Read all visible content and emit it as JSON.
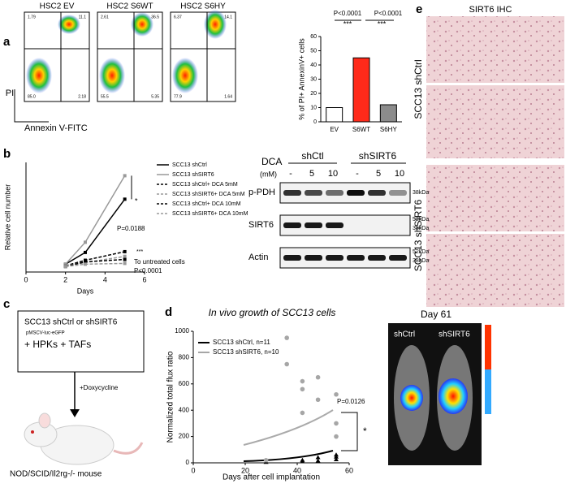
{
  "figure": {
    "panel_labels": [
      "a",
      "b",
      "c",
      "d",
      "e"
    ],
    "flow": {
      "y_label": "PI",
      "x_label": "Annexin V-FITC",
      "plots": [
        {
          "title": "HSC2 EV",
          "quadrants": [
            "1.79",
            "11.1",
            "85.0",
            "2.18"
          ]
        },
        {
          "title": "HSC2 S6WT",
          "quadrants": [
            "2.61",
            "36.5",
            "55.5",
            "5.35"
          ]
        },
        {
          "title": "HSC2 S6HY",
          "quadrants": [
            "6.37",
            "14.1",
            "77.9",
            "1.64"
          ]
        }
      ]
    },
    "western": {
      "treatment": "DCA",
      "unit": "(mM)",
      "groups": [
        "shCtl",
        "shSIRT6"
      ],
      "lanes": [
        "-",
        "5",
        "10",
        "-",
        "5",
        "10"
      ],
      "rows": [
        {
          "name": "p-PDH",
          "markers": [
            "38kDa"
          ]
        },
        {
          "name": "SIRT6",
          "markers": [
            "52kDa",
            "38kDa"
          ]
        },
        {
          "name": "Actin",
          "markers": [
            "52kDa",
            "38kDa"
          ]
        }
      ]
    },
    "diagram": {
      "cells": "SCC13 shCtrl or shSIRT6",
      "vector": "pMSCV-luc-eGFP",
      "additions": "+ HPKs + TAFs",
      "arrow_label": "+Doxycycline",
      "host": "NOD/SCID/Il2rg-/- mouse"
    },
    "imaging": {
      "title": "Day 61",
      "labels": [
        "shCtrl",
        "shSIRT6"
      ]
    },
    "ihc": {
      "title": "SIRT6 IHC",
      "labels": [
        "SCC13 shCtrl",
        "SCC13 shSIRT6"
      ]
    }
  },
  "chart_data": [
    {
      "type": "bar",
      "y_label": "% of PI+ AnnexinV+ cells",
      "categories": [
        "EV",
        "S6WT",
        "S6HY"
      ],
      "values": [
        10,
        45,
        12
      ],
      "colors": [
        "#ffffff",
        "#ff2a1a",
        "#8c8c8c"
      ],
      "ylim": [
        0,
        60
      ],
      "yticks": [
        0,
        10,
        20,
        30,
        40,
        50,
        60
      ],
      "annotations": [
        "P<0.0001",
        "P<0.0001",
        "***",
        "***"
      ]
    },
    {
      "type": "line",
      "x_label": "Days",
      "y_label": "Relative cell number",
      "x": [
        2,
        3,
        5
      ],
      "xlim": [
        0,
        6
      ],
      "xticks": [
        0,
        2,
        4,
        6
      ],
      "ylim": [
        0,
        14
      ],
      "series": [
        {
          "name": "SCC13 shCtrl",
          "color": "#000000",
          "dashed": false,
          "values": [
            1.0,
            2.5,
            9.3
          ]
        },
        {
          "name": "SCC13 shSIRT6",
          "color": "#999999",
          "dashed": false,
          "values": [
            1.0,
            3.8,
            12.3
          ]
        },
        {
          "name": "SCC13 shCtrl+ DCA 5mM",
          "color": "#000000",
          "dashed": true,
          "values": [
            0.8,
            1.5,
            2.6
          ]
        },
        {
          "name": "SCC13 shSIRT6+ DCA 5mM",
          "color": "#999999",
          "dashed": true,
          "values": [
            0.8,
            1.2,
            2.0
          ]
        },
        {
          "name": "SCC13 shCtrl+ DCA 10mM",
          "color": "#000000",
          "dashed": true,
          "values": [
            0.7,
            1.3,
            1.6
          ]
        },
        {
          "name": "SCC13 shSIRT6+ DCA 10mM",
          "color": "#999999",
          "dashed": true,
          "values": [
            0.7,
            1.0,
            1.1
          ]
        }
      ],
      "annotations": [
        "*",
        "P=0.0188",
        "***",
        "To untreated cells",
        "P<0.0001"
      ]
    },
    {
      "type": "scatter",
      "title": "In vivo growth of SCC13 cells",
      "x_label": "Days after cell implantation",
      "y_label": "Normalized total flux ratio",
      "xlim": [
        0,
        60
      ],
      "xticks": [
        0,
        20,
        40,
        60
      ],
      "ylim": [
        0,
        1000
      ],
      "yticks": [
        0,
        200,
        400,
        600,
        800,
        1000
      ],
      "series": [
        {
          "name": "SCC13 shCtrl, n=11",
          "color": "#000000",
          "x": [
            28,
            42,
            42,
            48,
            48,
            55,
            55,
            55
          ],
          "values": [
            5,
            20,
            10,
            40,
            15,
            60,
            45,
            25
          ]
        },
        {
          "name": "SCC13 shSIRT6, n=10",
          "color": "#a6a6a6",
          "x": [
            28,
            36,
            36,
            42,
            42,
            42,
            48,
            48,
            55,
            55,
            55
          ],
          "values": [
            20,
            950,
            750,
            620,
            560,
            380,
            650,
            480,
            520,
            300,
            200
          ]
        }
      ],
      "annotations": [
        "P=0.0126",
        "*"
      ]
    }
  ]
}
